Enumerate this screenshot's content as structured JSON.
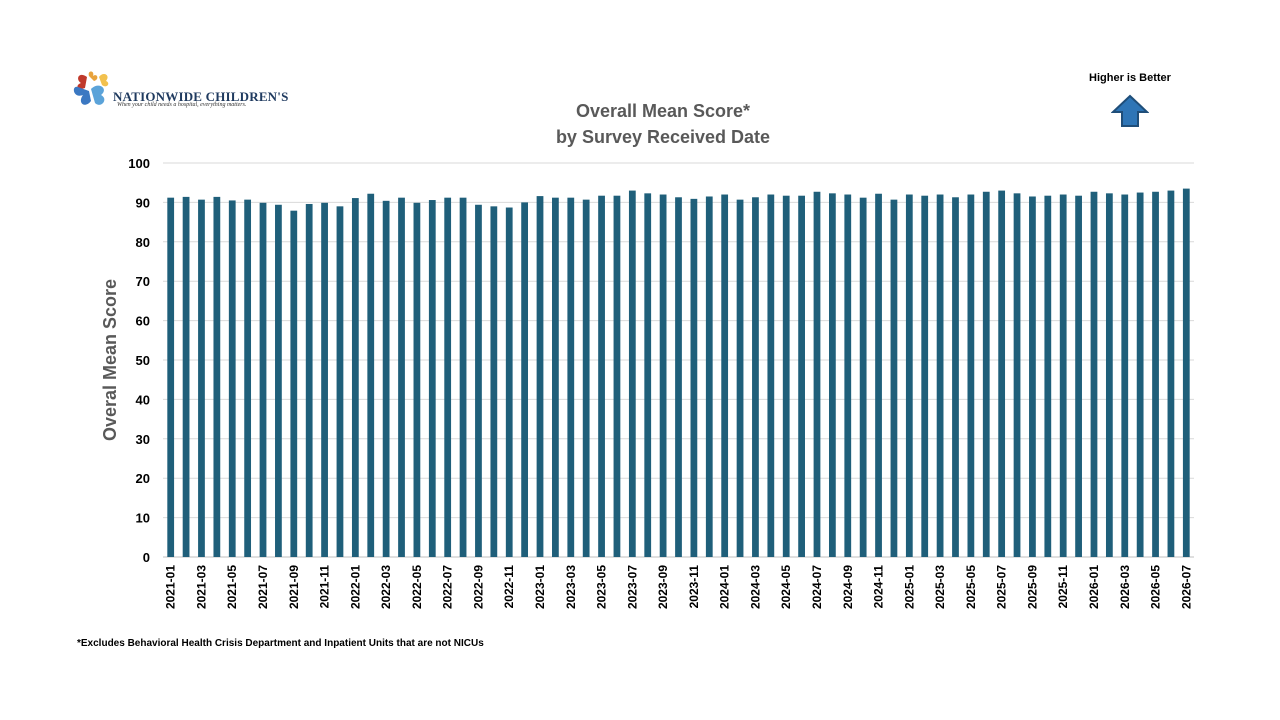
{
  "logo": {
    "name": "NATIONWIDE CHILDREN'S",
    "tagline": "When your child needs a hospital, everything matters."
  },
  "badge": {
    "label": "Higher is Better",
    "icon": "up-arrow-icon",
    "color": "#2e75b6"
  },
  "footnote": "*Excludes Behavioral Health Crisis Department and Inpatient Units that are not NICUs",
  "colors": {
    "bar": "#1f5f7a",
    "grid": "#d9d9d9",
    "axis_text": "#000000",
    "title": "#595959"
  },
  "chart_data": {
    "type": "bar",
    "title": "Overall Mean Score*",
    "subtitle": "by Survey Received Date",
    "ylabel": "Overal Mean Score",
    "xlabel": "",
    "ylim": [
      0,
      100
    ],
    "yticks": [
      0,
      10,
      20,
      30,
      40,
      50,
      60,
      70,
      80,
      90,
      100
    ],
    "grid": true,
    "categories": [
      "2021-01",
      "2021-02",
      "2021-03",
      "2021-04",
      "2021-05",
      "2021-06",
      "2021-07",
      "2021-08",
      "2021-09",
      "2021-10",
      "2021-11",
      "2021-12",
      "2022-01",
      "2022-02",
      "2022-03",
      "2022-04",
      "2022-05",
      "2022-06",
      "2022-07",
      "2022-08",
      "2022-09",
      "2022-10",
      "2022-11",
      "2022-12",
      "2023-01",
      "2023-02",
      "2023-03",
      "2023-04",
      "2023-05",
      "2023-06",
      "2023-07",
      "2023-08",
      "2023-09",
      "2023-10",
      "2023-11",
      "2023-12",
      "2024-01",
      "2024-02",
      "2024-03",
      "2024-04",
      "2024-05",
      "2024-06",
      "2024-07",
      "2024-08",
      "2024-09",
      "2024-10",
      "2024-11",
      "2024-12",
      "2025-01",
      "2025-02",
      "2025-03",
      "2025-04",
      "2025-05",
      "2025-06",
      "2025-07",
      "2025-08",
      "2025-09",
      "2025-10",
      "2025-11",
      "2025-12",
      "2026-01",
      "2026-02",
      "2026-03",
      "2026-04",
      "2026-05",
      "2026-06",
      "2026-07"
    ],
    "tick_labels": [
      "2021-01",
      "2021-03",
      "2021-05",
      "2021-07",
      "2021-09",
      "2021-11",
      "2022-01",
      "2022-03",
      "2022-05",
      "2022-07",
      "2022-09",
      "2022-11",
      "2023-01",
      "2023-03",
      "2023-05",
      "2023-07",
      "2023-09",
      "2023-11",
      "2024-01",
      "2024-03",
      "2024-05",
      "2024-07",
      "2024-09",
      "2024-11",
      "2025-01",
      "2025-03",
      "2025-05",
      "2025-07",
      "2025-09",
      "2025-11",
      "2026-01",
      "2026-03",
      "2026-05",
      "2026-07"
    ],
    "values": [
      91.2,
      91.4,
      90.7,
      91.4,
      90.5,
      90.7,
      89.9,
      89.4,
      87.9,
      89.6,
      89.9,
      89.0,
      91.1,
      92.2,
      90.4,
      91.2,
      89.9,
      90.6,
      91.2,
      91.2,
      89.4,
      89.0,
      88.7,
      90.0,
      91.6,
      91.2,
      91.2,
      90.7,
      91.7,
      91.7,
      93.0,
      92.3,
      92.0,
      91.3,
      90.9,
      91.5,
      92.0,
      90.7,
      91.3,
      92.0,
      91.7,
      91.7,
      92.7,
      92.3,
      92.0,
      91.2,
      92.2,
      90.7,
      92.0,
      91.7,
      92.0,
      91.3,
      92.0,
      92.7,
      93.0,
      92.3,
      91.5,
      91.7,
      92.0,
      91.7,
      92.7,
      92.3,
      92.0,
      92.5,
      92.7,
      93.0,
      93.5
    ]
  }
}
